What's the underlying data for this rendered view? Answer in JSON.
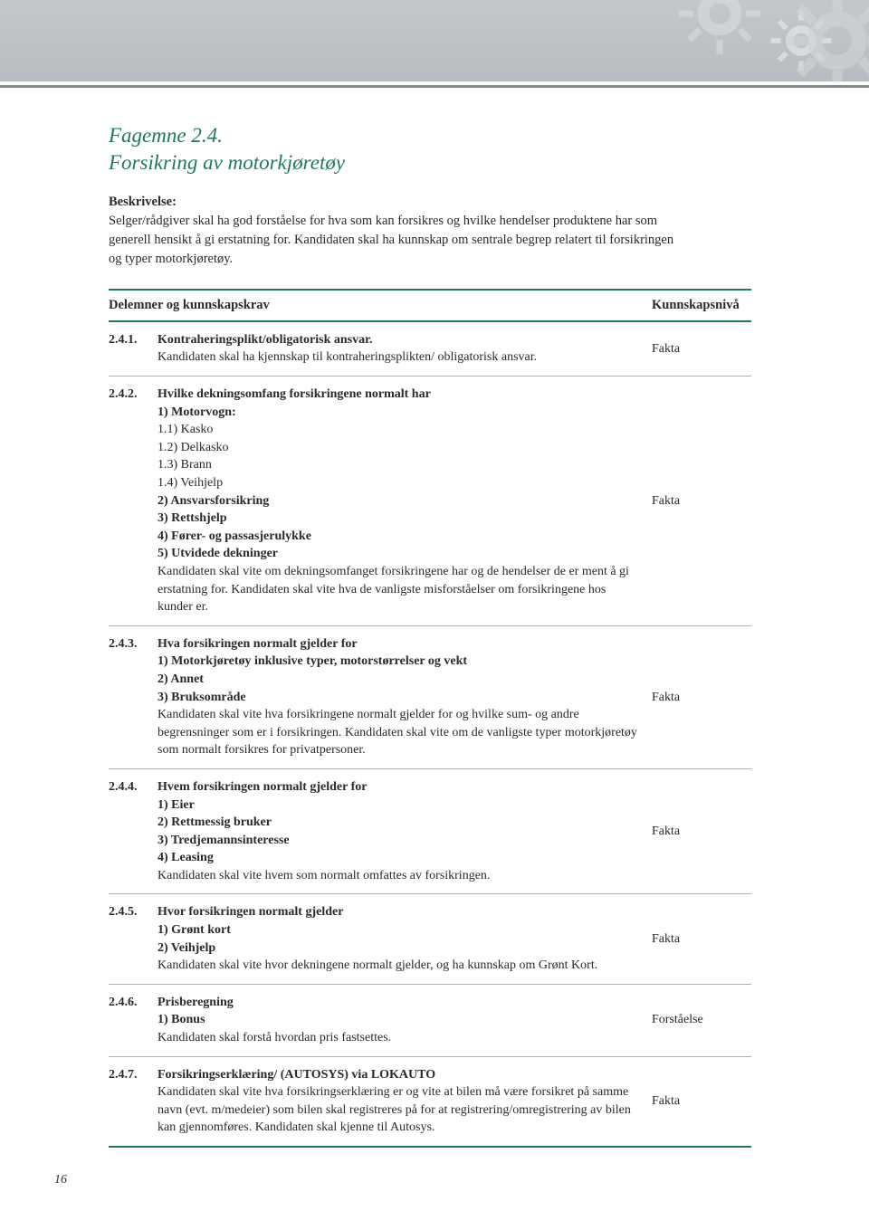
{
  "band": {
    "bg_top": "#c4c8cc",
    "bg_bottom": "#b8bcc0",
    "stripe_color": "#868686",
    "gear_color": "#dcdfe2"
  },
  "title_line1": "Fagemne 2.4.",
  "title_line2": "Forsikring av motorkjøretøy",
  "title_color": "#1f7a5a",
  "desc_label": "Beskrivelse:",
  "desc_text": "Selger/rådgiver skal ha god forståelse for hva som kan forsikres og hvilke hendelser produktene har som generell hensikt å gi erstatning for. Kandidaten skal ha kunnskap om sentrale begrep relatert til forsikringen og typer motorkjøretøy.",
  "table": {
    "border_color": "#1f7a5a",
    "row_border_color": "#b0b0b0",
    "header_left": "Delemner og kunnskapskrav",
    "header_right": "Kunnskapsnivå",
    "rows": [
      {
        "num": "2.4.1.",
        "heading": "Kontraheringsplikt/obligatorisk ansvar.",
        "body": "Kandidaten skal ha kjennskap til kontraheringsplikten/ obligatorisk ansvar.",
        "level": "Fakta"
      },
      {
        "num": "2.4.2.",
        "heading": "Hvilke dekningsomfang forsikringene normalt har\n1) Motorvogn:",
        "prebody": "1.1) Kasko\n1.2) Delkasko\n1.3) Brann\n1.4) Veihjelp",
        "mid_bold": "2) Ansvarsforsikring\n3) Rettshjelp\n4) Fører- og passasjerulykke\n5) Utvidede dekninger",
        "body": "Kandidaten skal vite om dekningsomfanget forsikringene har og de hendelser de er ment å gi erstatning for. Kandidaten skal vite hva de vanligste misforståelser om forsikringene hos kunder er.",
        "level": "Fakta"
      },
      {
        "num": "2.4.3.",
        "heading": "Hva forsikringen normalt gjelder for\n1) Motorkjøretøy inklusive typer, motorstørrelser og vekt\n2) Annet\n3) Bruksområde",
        "body": "Kandidaten skal vite hva forsikringene normalt gjelder for og hvilke sum- og andre begrensninger som er i forsikringen. Kandidaten skal vite om de vanligste typer motorkjøretøy som normalt forsikres for privatpersoner.",
        "level": "Fakta"
      },
      {
        "num": "2.4.4.",
        "heading": "Hvem forsikringen normalt gjelder for\n1) Eier\n2) Rettmessig bruker\n3) Tredjemannsinteresse\n4) Leasing",
        "body": "Kandidaten skal vite hvem som normalt omfattes av forsikringen.",
        "level": "Fakta"
      },
      {
        "num": "2.4.5.",
        "heading": "Hvor forsikringen normalt gjelder\n1) Grønt kort\n2) Veihjelp",
        "body": "Kandidaten skal vite hvor dekningene normalt gjelder, og ha kunnskap om Grønt Kort.",
        "level": "Fakta"
      },
      {
        "num": "2.4.6.",
        "heading": "Prisberegning\n1) Bonus",
        "body": "Kandidaten skal forstå hvordan pris fastsettes.",
        "level": "Forståelse"
      },
      {
        "num": "2.4.7.",
        "heading": "Forsikringserklæring/  (AUTOSYS) via LOKAUTO",
        "body": "Kandidaten skal vite hva forsikringserklæring er og vite at bilen må være forsikret på samme navn (evt. m/medeier) som bilen skal registreres på for at registrering/omregistrering av bilen kan gjennomføres. Kandidaten skal kjenne til Autosys.",
        "level": "Fakta"
      }
    ]
  },
  "page_number": "16"
}
